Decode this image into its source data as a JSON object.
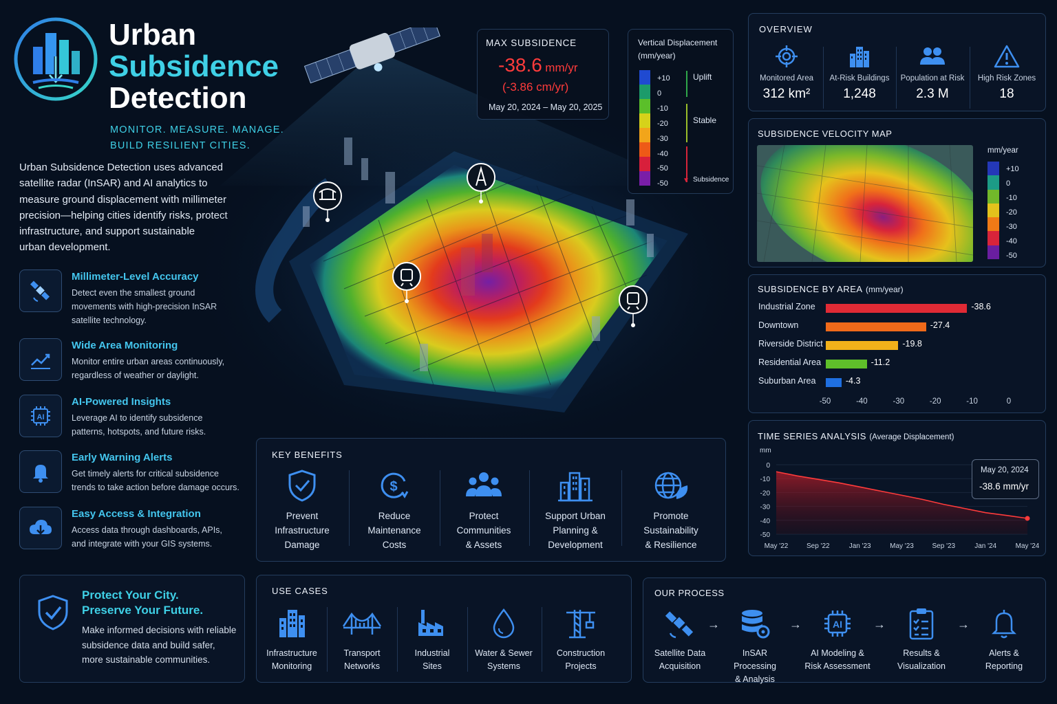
{
  "brand": {
    "title_line1": "Urban",
    "title_line2": "Subsidence",
    "title_line3": "Detection",
    "tagline_line1": "MONITOR. MEASURE. MANAGE.",
    "tagline_line2": "BUILD RESILIENT CITIES.",
    "intro_lines": [
      "Urban Subsidence Detection uses advanced",
      "satellite radar (InSAR) and AI analytics to",
      "measure ground displacement with millimeter",
      "precision—helping cities identify risks, protect",
      "infrastructure, and support sustainable",
      "urban development."
    ]
  },
  "features": [
    {
      "title": "Millimeter-Level Accuracy",
      "icon": "satellite-icon",
      "desc": [
        "Detect even the smallest ground",
        "movements with high-precision InSAR",
        "satellite technology."
      ]
    },
    {
      "title": "Wide Area Monitoring",
      "icon": "trend-chart-icon",
      "desc": [
        "Monitor entire urban areas continuously,",
        "regardless of weather or daylight."
      ]
    },
    {
      "title": "AI-Powered Insights",
      "icon": "ai-chip-icon",
      "desc": [
        "Leverage AI to identify subsidence",
        "patterns, hotspots, and future risks."
      ]
    },
    {
      "title": "Early Warning Alerts",
      "icon": "bell-icon",
      "desc": [
        "Get timely alerts for critical subsidence",
        "trends to take action before damage occurs."
      ]
    },
    {
      "title": "Easy Access & Integration",
      "icon": "cloud-download-icon",
      "desc": [
        "Access data through dashboards, APIs,",
        "and integrate with your GIS systems."
      ]
    }
  ],
  "protect": {
    "title_line1": "Protect Your City.",
    "title_line2": "Preserve Your Future.",
    "desc": [
      "Make informed decisions with reliable",
      "subsidence data and build safer,",
      "more sustainable communities."
    ]
  },
  "max_subsidence": {
    "title": "MAX SUBSIDENCE",
    "value": "-38.6",
    "unit": "mm/yr",
    "alt": "(-3.86 cm/yr)",
    "period": "May 20, 2024 – May 20, 2025"
  },
  "vertical_legend": {
    "title_line1": "Vertical Displacement",
    "title_line2": "(mm/year)",
    "ticks": [
      "+10",
      "0",
      "-10",
      "-20",
      "-30",
      "-40",
      "-50",
      "-50"
    ],
    "labels": {
      "uplift": "Uplift",
      "stable": "Stable",
      "subsidence": "Subsidence"
    },
    "colors": [
      "#1f4ad1",
      "#1c9b6a",
      "#5bbf2a",
      "#d6d21a",
      "#f2a51a",
      "#ee5a17",
      "#d81f3b",
      "#7a1ea8"
    ]
  },
  "overview": {
    "title": "OVERVIEW",
    "items": [
      {
        "icon": "target-icon",
        "label": "Monitored Area",
        "value": "312 km²"
      },
      {
        "icon": "buildings-icon",
        "label": "At-Risk Buildings",
        "value": "1,248"
      },
      {
        "icon": "people-icon",
        "label": "Population at Risk",
        "value": "2.3 M"
      },
      {
        "icon": "warning-icon",
        "label": "High Risk Zones",
        "value": "18"
      }
    ]
  },
  "velocity_map": {
    "title": "SUBSIDENCE VELOCITY MAP",
    "unit": "mm/year",
    "ticks": [
      "+10",
      "0",
      "-10",
      "-20",
      "-30",
      "-40",
      "-50"
    ],
    "colors": [
      "#2438b8",
      "#1c9b86",
      "#72b82a",
      "#e3c21c",
      "#f07a16",
      "#d8243a",
      "#6a1ea0"
    ]
  },
  "by_area": {
    "title": "SUBSIDENCE BY AREA",
    "unit": "(mm/year)",
    "xticks": [
      "-50",
      "-40",
      "-30",
      "-20",
      "-10",
      "0"
    ],
    "xlim": [
      -50,
      0
    ]
  },
  "time_series": {
    "title": "TIME SERIES ANALYSIS",
    "subtitle": "(Average Displacement)",
    "ylabel": "mm",
    "yticks": [
      "0",
      "-10",
      "-20",
      "-30",
      "-40",
      "-50"
    ],
    "xticks": [
      "May '22",
      "Sep '22",
      "Jan '23",
      "May '23",
      "Sep '23",
      "Jan '24",
      "May '24"
    ],
    "tooltip_date": "May 20, 2024",
    "tooltip_value": "-38.6 mm/yr"
  },
  "chart_data": [
    {
      "type": "bar",
      "title": "SUBSIDENCE BY AREA (mm/year)",
      "categories": [
        "Industrial Zone",
        "Downtown",
        "Riverside District",
        "Residential Area",
        "Suburban Area"
      ],
      "values": [
        -38.6,
        -27.4,
        -19.8,
        -11.2,
        -4.3
      ],
      "value_labels": [
        "-38.6",
        "-27.4",
        "-19.8",
        "-11.2",
        "-4.3"
      ],
      "colors": [
        "#e02a35",
        "#f06a1a",
        "#f2b11a",
        "#5fbf2a",
        "#1f6fe0"
      ],
      "xlim": [
        -50,
        0
      ]
    },
    {
      "type": "area",
      "title": "TIME SERIES ANALYSIS (Average Displacement)",
      "ylabel": "mm",
      "ylim": [
        -50,
        0
      ],
      "x": [
        "May '22",
        "Jul '22",
        "Sep '22",
        "Nov '22",
        "Jan '23",
        "Mar '23",
        "May '23",
        "Jul '23",
        "Sep '23",
        "Nov '23",
        "Jan '24",
        "Mar '24",
        "May '24"
      ],
      "values": [
        -5,
        -8,
        -10.5,
        -13,
        -16,
        -19,
        -22,
        -25,
        -28.5,
        -31.5,
        -34.5,
        -36.5,
        -38.6
      ]
    }
  ],
  "key_benefits": {
    "title": "KEY BENEFITS",
    "items": [
      {
        "icon": "shield-check-icon",
        "lines": [
          "Prevent",
          "Infrastructure",
          "Damage"
        ]
      },
      {
        "icon": "dollar-cycle-icon",
        "lines": [
          "Reduce",
          "Maintenance",
          "Costs"
        ]
      },
      {
        "icon": "community-icon",
        "lines": [
          "Protect",
          "Communities",
          "& Assets"
        ]
      },
      {
        "icon": "city-buildings-icon",
        "lines": [
          "Support Urban",
          "Planning &",
          "Development"
        ]
      },
      {
        "icon": "globe-leaf-icon",
        "lines": [
          "Promote",
          "Sustainability",
          "& Resilience"
        ]
      }
    ]
  },
  "use_cases": {
    "title": "USE CASES",
    "items": [
      {
        "icon": "infrastructure-icon",
        "lines": [
          "Infrastructure",
          "Monitoring"
        ]
      },
      {
        "icon": "bridge-icon",
        "lines": [
          "Transport",
          "Networks"
        ]
      },
      {
        "icon": "factory-icon",
        "lines": [
          "Industrial",
          "Sites"
        ]
      },
      {
        "icon": "water-drop-icon",
        "lines": [
          "Water & Sewer",
          "Systems"
        ]
      },
      {
        "icon": "crane-icon",
        "lines": [
          "Construction",
          "Projects"
        ]
      }
    ]
  },
  "process": {
    "title": "OUR PROCESS",
    "items": [
      {
        "icon": "satellite-icon",
        "lines": [
          "Satellite Data",
          "Acquisition"
        ]
      },
      {
        "icon": "database-gear-icon",
        "lines": [
          "InSAR Processing",
          "& Analysis"
        ]
      },
      {
        "icon": "ai-chip-icon",
        "lines": [
          "AI Modeling &",
          "Risk Assessment"
        ]
      },
      {
        "icon": "clipboard-icon",
        "lines": [
          "Results &",
          "Visualization"
        ]
      },
      {
        "icon": "bell-icon",
        "lines": [
          "Alerts &",
          "Reporting"
        ]
      }
    ],
    "arrow": "→"
  },
  "colors": {
    "background": "#06101f",
    "accent_cyan": "#3fd0e6",
    "accent_blue": "#44c6ee",
    "alert_red": "#ff3b3b"
  }
}
